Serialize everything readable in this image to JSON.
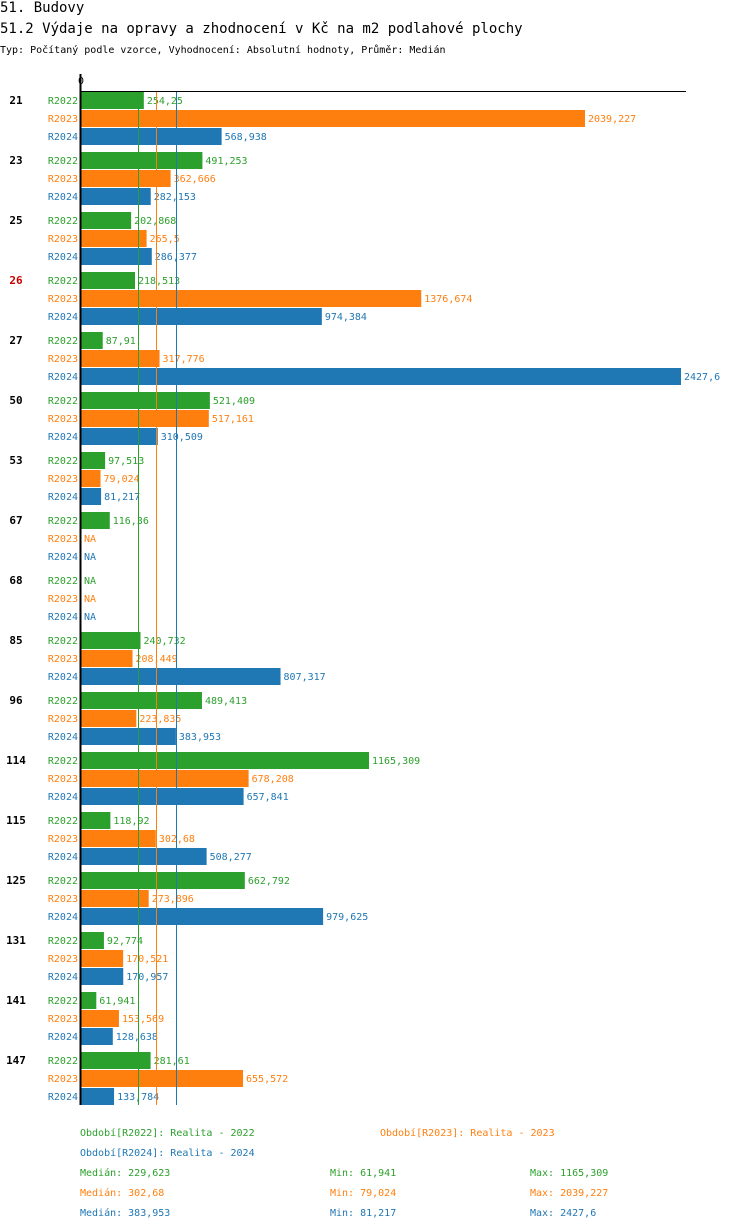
{
  "header": {
    "title": "51. Budovy",
    "subtitle": "51.2 Výdaje na opravy a zhodnocení v Kč na m2 podlahové plochy",
    "meta": "Typ: Počítaný podle vzorce, Vyhodnocení: Absolutní hodnoty, Průměr: Medián"
  },
  "colors": {
    "R2022": "#2ca02c",
    "R2023": "#ff7f0e",
    "R2024": "#1f77b4",
    "highlight": "#cc0000",
    "axis": "#000000"
  },
  "chart_data": {
    "type": "bar",
    "orientation": "horizontal",
    "axis_zero_label": "0",
    "xlim": [
      0,
      2427.6
    ],
    "highlight_group": "26",
    "categories": [
      "21",
      "23",
      "25",
      "26",
      "27",
      "50",
      "53",
      "67",
      "68",
      "85",
      "96",
      "114",
      "115",
      "125",
      "131",
      "141",
      "147"
    ],
    "series": [
      {
        "name": "R2022",
        "values": [
          254.25,
          491.253,
          202.868,
          218.513,
          87.91,
          521.409,
          97.513,
          116.36,
          null,
          240.732,
          489.413,
          1165.309,
          118.92,
          662.792,
          92.774,
          61.941,
          281.61
        ],
        "labels": [
          "254,25",
          "491,253",
          "202,868",
          "218,513",
          "87,91",
          "521,409",
          "97,513",
          "116,36",
          "NA",
          "240,732",
          "489,413",
          "1165,309",
          "118,92",
          "662,792",
          "92,774",
          "61,941",
          "281,61"
        ]
      },
      {
        "name": "R2023",
        "values": [
          2039.227,
          362.666,
          265.5,
          1376.674,
          317.776,
          517.161,
          79.024,
          null,
          null,
          208.449,
          223.835,
          678.208,
          302.68,
          273.896,
          170.521,
          153.569,
          655.572
        ],
        "labels": [
          "2039,227",
          "362,666",
          "265,5",
          "1376,674",
          "317,776",
          "517,161",
          "79,024",
          "NA",
          "NA",
          "208,449",
          "223,835",
          "678,208",
          "302,68",
          "273,896",
          "170,521",
          "153,569",
          "655,572"
        ]
      },
      {
        "name": "R2024",
        "values": [
          568.938,
          282.153,
          286.377,
          974.384,
          2427.6,
          310.509,
          81.217,
          null,
          null,
          807.317,
          383.953,
          657.841,
          508.277,
          979.625,
          170.957,
          128.638,
          133.784
        ],
        "labels": [
          "568,938",
          "282,153",
          "286,377",
          "974,384",
          "2427,6",
          "310,509",
          "81,217",
          "NA",
          "NA",
          "807,317",
          "383,953",
          "657,841",
          "508,277",
          "979,625",
          "170,957",
          "128,638",
          "133,784"
        ]
      }
    ],
    "medians": [
      229.623,
      302.68,
      383.953
    ]
  },
  "legend": {
    "entries": [
      {
        "series": "R2022",
        "label": "Období[R2022]: Realita - 2022"
      },
      {
        "series": "R2023",
        "label": "Období[R2023]: Realita - 2023"
      },
      {
        "series": "R2024",
        "label": "Období[R2024]: Realita - 2024"
      }
    ],
    "stats": [
      {
        "series": "R2022",
        "median": "Medián: 229,623",
        "min": "Min: 61,941",
        "max": "Max: 1165,309"
      },
      {
        "series": "R2023",
        "median": "Medián: 302,68",
        "min": "Min: 79,024",
        "max": "Max: 2039,227"
      },
      {
        "series": "R2024",
        "median": "Medián: 383,953",
        "min": "Min: 81,217",
        "max": "Max: 2427,6"
      }
    ]
  }
}
